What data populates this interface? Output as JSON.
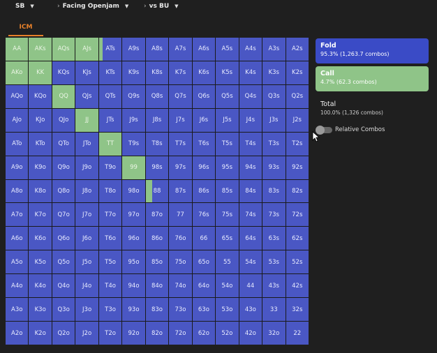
{
  "breadcrumb": {
    "position": "SB",
    "action": "Facing Openjam",
    "versus": "vs BU"
  },
  "tabs": [
    "ICM"
  ],
  "legend": {
    "fold": {
      "label": "Fold",
      "detail": "95.3% (1,263.7 combos)",
      "color": "#3a4bc6"
    },
    "call": {
      "label": "Call",
      "detail": "4.7% (62.3 combos)",
      "color": "#8fc488"
    },
    "total": {
      "label": "Total",
      "detail": "100.0% (1,326 combos)"
    },
    "relative_toggle": {
      "label": "Relative Combos",
      "checked": false
    }
  },
  "matrix": {
    "rows": [
      [
        "AA",
        "AKs",
        "AQs",
        "AJs",
        "ATs",
        "A9s",
        "A8s",
        "A7s",
        "A6s",
        "A5s",
        "A4s",
        "A3s",
        "A2s"
      ],
      [
        "AKo",
        "KK",
        "KQs",
        "KJs",
        "KTs",
        "K9s",
        "K8s",
        "K7s",
        "K6s",
        "K5s",
        "K4s",
        "K3s",
        "K2s"
      ],
      [
        "AQo",
        "KQo",
        "QQ",
        "QJs",
        "QTs",
        "Q9s",
        "Q8s",
        "Q7s",
        "Q6s",
        "Q5s",
        "Q4s",
        "Q3s",
        "Q2s"
      ],
      [
        "AJo",
        "KJo",
        "QJo",
        "JJ",
        "JTs",
        "J9s",
        "J8s",
        "J7s",
        "J6s",
        "J5s",
        "J4s",
        "J3s",
        "J2s"
      ],
      [
        "ATo",
        "KTo",
        "QTo",
        "JTo",
        "TT",
        "T9s",
        "T8s",
        "T7s",
        "T6s",
        "T5s",
        "T4s",
        "T3s",
        "T2s"
      ],
      [
        "A9o",
        "K9o",
        "Q9o",
        "J9o",
        "T9o",
        "99",
        "98s",
        "97s",
        "96s",
        "95s",
        "94s",
        "93s",
        "92s"
      ],
      [
        "A8o",
        "K8o",
        "Q8o",
        "J8o",
        "T8o",
        "98o",
        "88",
        "87s",
        "86s",
        "85s",
        "84s",
        "83s",
        "82s"
      ],
      [
        "A7o",
        "K7o",
        "Q7o",
        "J7o",
        "T7o",
        "97o",
        "87o",
        "77",
        "76s",
        "75s",
        "74s",
        "73s",
        "72s"
      ],
      [
        "A6o",
        "K6o",
        "Q6o",
        "J6o",
        "T6o",
        "96o",
        "86o",
        "76o",
        "66",
        "65s",
        "64s",
        "63s",
        "62s"
      ],
      [
        "A5o",
        "K5o",
        "Q5o",
        "J5o",
        "T5o",
        "95o",
        "85o",
        "75o",
        "65o",
        "55",
        "54s",
        "53s",
        "52s"
      ],
      [
        "A4o",
        "K4o",
        "Q4o",
        "J4o",
        "T4o",
        "94o",
        "84o",
        "74o",
        "64o",
        "54o",
        "44",
        "43s",
        "42s"
      ],
      [
        "A3o",
        "K3o",
        "Q3o",
        "J3o",
        "T3o",
        "93o",
        "83o",
        "73o",
        "63o",
        "53o",
        "43o",
        "33",
        "32s"
      ],
      [
        "A2o",
        "K2o",
        "Q2o",
        "J2o",
        "T2o",
        "92o",
        "82o",
        "72o",
        "62o",
        "52o",
        "42o",
        "32o",
        "22"
      ]
    ],
    "call_frequency": {
      "AA": 1,
      "AKs": 1,
      "AQs": 1,
      "AJs": 1,
      "ATs": 0.15,
      "AKo": 1,
      "KK": 1,
      "QQ": 1,
      "JJ": 1,
      "TT": 1,
      "99": 1,
      "88": 0.28
    }
  }
}
